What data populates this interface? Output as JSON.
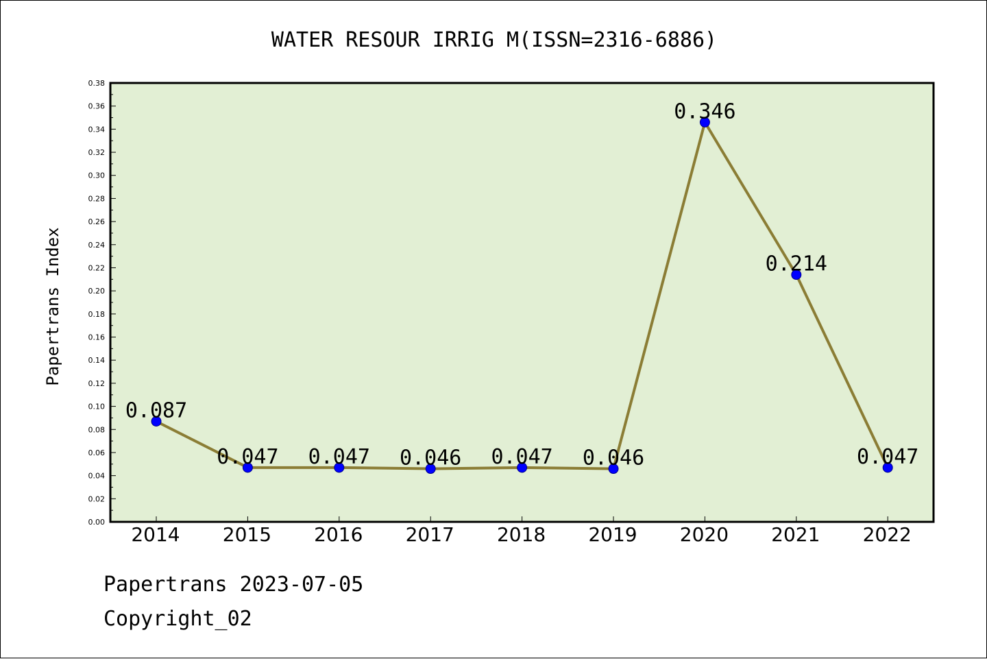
{
  "chart_data": {
    "type": "line",
    "title": "WATER RESOUR IRRIG M(ISSN=2316-6886)",
    "xlabel": "",
    "ylabel": "Papertrans Index",
    "categories": [
      "2014",
      "2015",
      "2016",
      "2017",
      "2018",
      "2019",
      "2020",
      "2021",
      "2022"
    ],
    "values": [
      0.087,
      0.047,
      0.047,
      0.046,
      0.047,
      0.046,
      0.346,
      0.214,
      0.047
    ],
    "data_labels": [
      "0.087",
      "0.047",
      "0.047",
      "0.046",
      "0.047",
      "0.046",
      "0.346",
      "0.214",
      "0.047"
    ],
    "ylim": [
      0,
      0.38
    ],
    "yticks": [
      "0.00",
      "0.02",
      "0.04",
      "0.06",
      "0.08",
      "0.10",
      "0.12",
      "0.14",
      "0.16",
      "0.18",
      "0.20",
      "0.22",
      "0.24",
      "0.26",
      "0.28",
      "0.30",
      "0.32",
      "0.34",
      "0.36",
      "0.38"
    ],
    "grid": false,
    "legend": "none",
    "colors": {
      "plot_background": "#e2efd4",
      "line": "#8b7d35",
      "marker_fill": "#0000ff",
      "marker_edge": "#00008b"
    }
  },
  "footer": {
    "line1": "Papertrans 2023-07-05",
    "line2": "Copyright_02"
  }
}
